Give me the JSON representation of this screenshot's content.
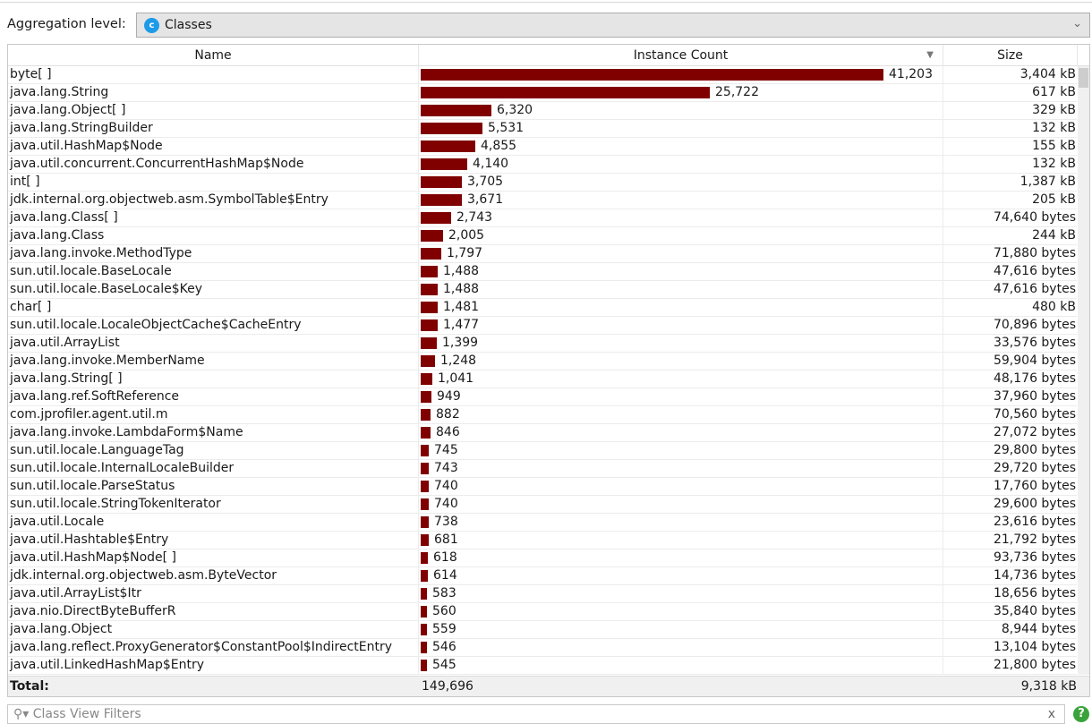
{
  "aggregation": {
    "label": "Aggregation level:",
    "value": "Classes",
    "icon": "class-c-icon"
  },
  "columns": {
    "name": "Name",
    "count": "Instance Count",
    "size": "Size"
  },
  "accent": "#800000",
  "rows": [
    [
      "byte[ ]",
      41203,
      "41,203",
      "3,404 kB"
    ],
    [
      "java.lang.String",
      25722,
      "25,722",
      "617 kB"
    ],
    [
      "java.lang.Object[ ]",
      6320,
      "6,320",
      "329 kB"
    ],
    [
      "java.lang.StringBuilder",
      5531,
      "5,531",
      "132 kB"
    ],
    [
      "java.util.HashMap$Node",
      4855,
      "4,855",
      "155 kB"
    ],
    [
      "java.util.concurrent.ConcurrentHashMap$Node",
      4140,
      "4,140",
      "132 kB"
    ],
    [
      "int[ ]",
      3705,
      "3,705",
      "1,387 kB"
    ],
    [
      "jdk.internal.org.objectweb.asm.SymbolTable$Entry",
      3671,
      "3,671",
      "205 kB"
    ],
    [
      "java.lang.Class[ ]",
      2743,
      "2,743",
      "74,640 bytes"
    ],
    [
      "java.lang.Class",
      2005,
      "2,005",
      "244 kB"
    ],
    [
      "java.lang.invoke.MethodType",
      1797,
      "1,797",
      "71,880 bytes"
    ],
    [
      "sun.util.locale.BaseLocale",
      1488,
      "1,488",
      "47,616 bytes"
    ],
    [
      "sun.util.locale.BaseLocale$Key",
      1488,
      "1,488",
      "47,616 bytes"
    ],
    [
      "char[ ]",
      1481,
      "1,481",
      "480 kB"
    ],
    [
      "sun.util.locale.LocaleObjectCache$CacheEntry",
      1477,
      "1,477",
      "70,896 bytes"
    ],
    [
      "java.util.ArrayList",
      1399,
      "1,399",
      "33,576 bytes"
    ],
    [
      "java.lang.invoke.MemberName",
      1248,
      "1,248",
      "59,904 bytes"
    ],
    [
      "java.lang.String[ ]",
      1041,
      "1,041",
      "48,176 bytes"
    ],
    [
      "java.lang.ref.SoftReference",
      949,
      "949",
      "37,960 bytes"
    ],
    [
      "com.jprofiler.agent.util.m",
      882,
      "882",
      "70,560 bytes"
    ],
    [
      "java.lang.invoke.LambdaForm$Name",
      846,
      "846",
      "27,072 bytes"
    ],
    [
      "sun.util.locale.LanguageTag",
      745,
      "745",
      "29,800 bytes"
    ],
    [
      "sun.util.locale.InternalLocaleBuilder",
      743,
      "743",
      "29,720 bytes"
    ],
    [
      "sun.util.locale.ParseStatus",
      740,
      "740",
      "17,760 bytes"
    ],
    [
      "sun.util.locale.StringTokenIterator",
      740,
      "740",
      "29,600 bytes"
    ],
    [
      "java.util.Locale",
      738,
      "738",
      "23,616 bytes"
    ],
    [
      "java.util.Hashtable$Entry",
      681,
      "681",
      "21,792 bytes"
    ],
    [
      "java.util.HashMap$Node[ ]",
      618,
      "618",
      "93,736 bytes"
    ],
    [
      "jdk.internal.org.objectweb.asm.ByteVector",
      614,
      "614",
      "14,736 bytes"
    ],
    [
      "java.util.ArrayList$Itr",
      583,
      "583",
      "18,656 bytes"
    ],
    [
      "java.nio.DirectByteBufferR",
      560,
      "560",
      "35,840 bytes"
    ],
    [
      "java.lang.Object",
      559,
      "559",
      "8,944 bytes"
    ],
    [
      "java.lang.reflect.ProxyGenerator$ConstantPool$IndirectEntry",
      546,
      "546",
      "13,104 bytes"
    ],
    [
      "java.util.LinkedHashMap$Entry",
      545,
      "545",
      "21,800 bytes"
    ]
  ],
  "total": {
    "label": "Total:",
    "count": "149,696",
    "size": "9,318 kB"
  },
  "filter": {
    "placeholder": "Class View Filters",
    "clear": "x",
    "help": "?"
  }
}
